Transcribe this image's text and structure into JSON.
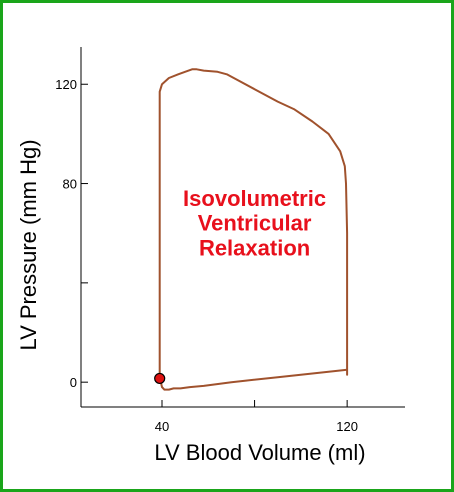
{
  "chart_data": {
    "type": "line",
    "title": "",
    "xlabel": "LV Blood Volume (ml)",
    "ylabel": "LV Pressure (mm Hg)",
    "xlim": [
      5,
      145
    ],
    "ylim": [
      -10,
      135
    ],
    "x_ticks": [
      {
        "value": 40,
        "label": "40"
      },
      {
        "value": 80,
        "label": ""
      },
      {
        "value": 120,
        "label": "120"
      }
    ],
    "y_ticks": [
      {
        "value": 0,
        "label": "0"
      },
      {
        "value": 40,
        "label": ""
      },
      {
        "value": 80,
        "label": "80"
      },
      {
        "value": 120,
        "label": "120"
      }
    ],
    "series": [
      {
        "x": [
          120,
          120,
          119.5,
          119,
          117,
          112,
          105,
          97,
          90,
          80,
          72,
          68,
          64,
          58,
          55,
          53,
          50,
          47,
          43,
          40,
          39,
          39,
          39,
          40,
          41,
          43,
          45,
          48,
          52,
          58,
          70,
          90,
          110,
          120
        ],
        "y": [
          3,
          60,
          80,
          87,
          93,
          100,
          105,
          110,
          113,
          118,
          122,
          124,
          125,
          125.5,
          126,
          126,
          125,
          124,
          122.5,
          120,
          117,
          60,
          2,
          -2,
          -3,
          -3,
          -2.5,
          -2.5,
          -2,
          -1.5,
          0,
          2,
          4,
          5
        ],
        "color": "#a0522d"
      }
    ],
    "marker": {
      "x": 39,
      "y": 1.5,
      "color": "#dd1111"
    },
    "annotations": [
      {
        "text": "Isovolumetric",
        "x": 80,
        "y": 71,
        "color": "#e8101c"
      },
      {
        "text": "Ventricular",
        "x": 80,
        "y": 61,
        "color": "#e8101c"
      },
      {
        "text": "Relaxation",
        "x": 80,
        "y": 51,
        "color": "#e8101c"
      }
    ],
    "grid": false,
    "legend": "none"
  }
}
